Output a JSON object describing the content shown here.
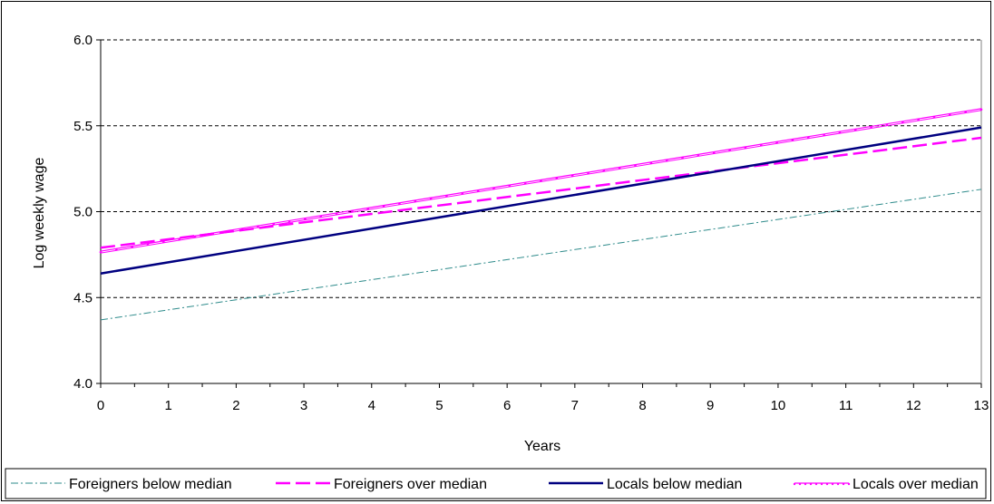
{
  "chart_data": {
    "type": "line",
    "title": "",
    "xlabel": "Years",
    "ylabel": "Log weekly wage",
    "x": [
      0,
      13
    ],
    "xlim": [
      0,
      13
    ],
    "ylim": [
      4.0,
      6.0
    ],
    "x_ticks": [
      "0",
      "1",
      "2",
      "3",
      "4",
      "5",
      "6",
      "7",
      "8",
      "9",
      "10",
      "11",
      "12",
      "13"
    ],
    "y_ticks": [
      "4.0",
      "4.5",
      "5.0",
      "5.5",
      "6.0"
    ],
    "grid": "horizontal dashed",
    "legend_position": "bottom",
    "series": [
      {
        "name": "Foreigners below median",
        "values": [
          4.37,
          5.13
        ],
        "color": "#2e8b8b",
        "style": "dash-dot"
      },
      {
        "name": "Foreigners over median",
        "values": [
          4.79,
          5.43
        ],
        "color": "#ff00ff",
        "style": "long-dash"
      },
      {
        "name": "Locals below median",
        "values": [
          4.64,
          5.49
        ],
        "color": "#000080",
        "style": "solid"
      },
      {
        "name": "Locals over median",
        "values": [
          4.77,
          5.6
        ],
        "color": "#ff00ff",
        "style": "thin-solid-markers"
      }
    ]
  }
}
